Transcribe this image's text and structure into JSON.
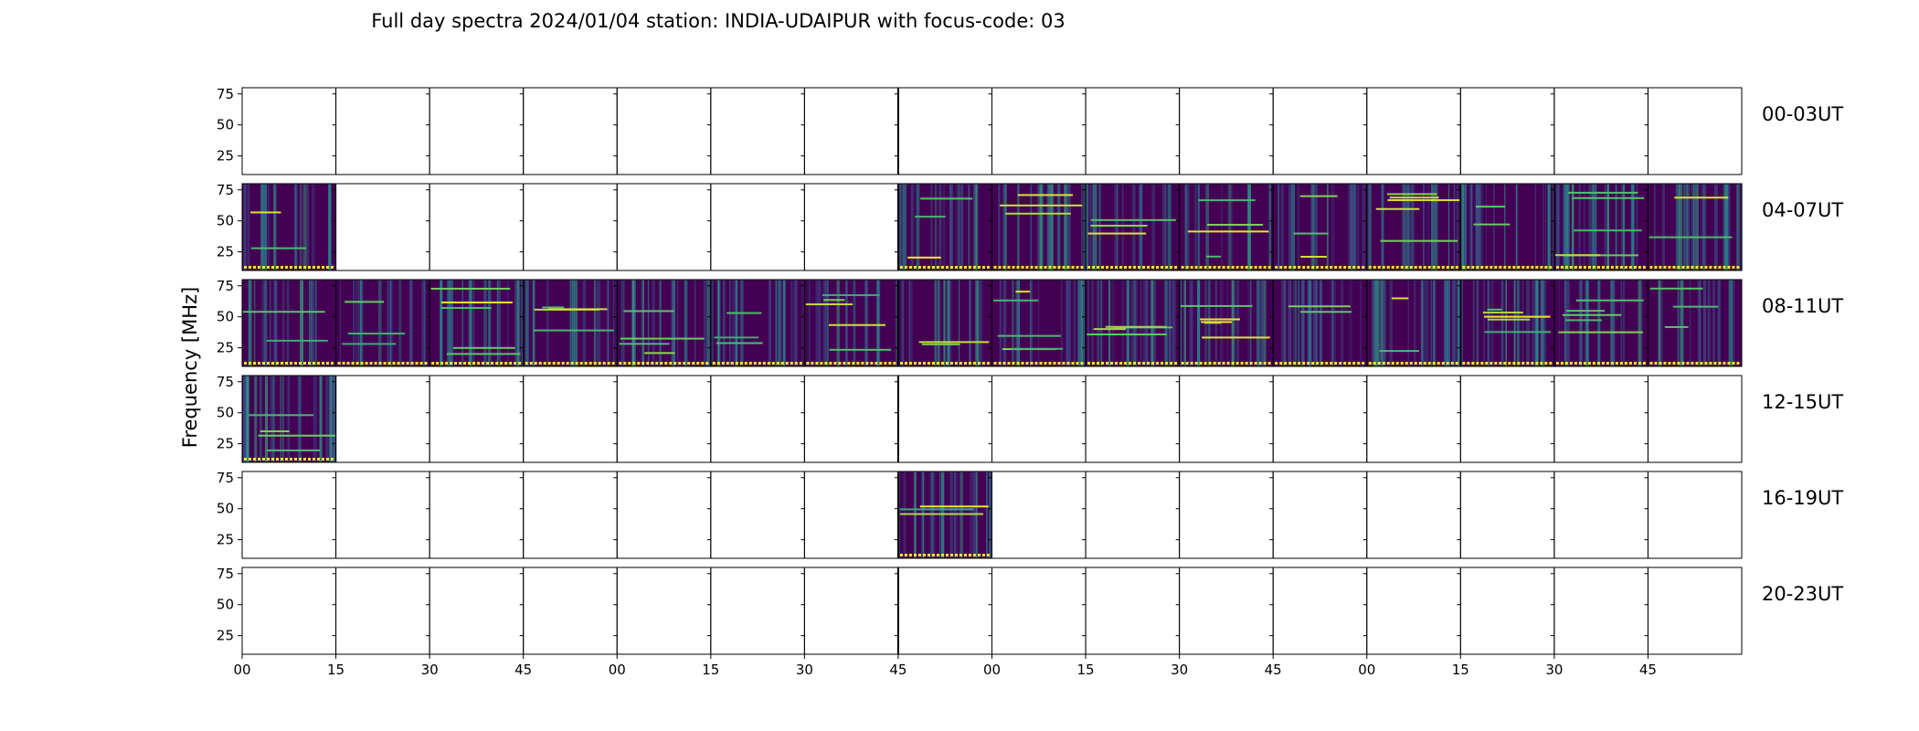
{
  "chart_data": {
    "type": "heatmap",
    "title": "Full day spectra 2024/01/04 station: INDIA-UDAIPUR with focus-code: 03",
    "ylabel": "Frequency [MHz]",
    "xlabel": "",
    "ylim": [
      10,
      80
    ],
    "y_ticks": [
      25,
      50,
      75
    ],
    "x_ticks": [
      "00",
      "15",
      "30",
      "45",
      "00",
      "15",
      "30",
      "45",
      "00",
      "15",
      "30",
      "45",
      "00",
      "15",
      "30",
      "45"
    ],
    "grid": false,
    "colormap": "viridis",
    "colors": {
      "low": "#440154",
      "mid": "#21918c",
      "high": "#fde725",
      "background": "#ffffff"
    },
    "rows": [
      {
        "label": "00-03UT",
        "filled_slots": []
      },
      {
        "label": "04-07UT",
        "filled_slots": [
          0,
          7,
          8,
          9,
          10,
          11,
          12,
          13,
          14,
          15
        ]
      },
      {
        "label": "08-11UT",
        "filled_slots": [
          0,
          1,
          2,
          3,
          4,
          5,
          6,
          7,
          8,
          9,
          10,
          11,
          12,
          13,
          14,
          15
        ]
      },
      {
        "label": "12-15UT",
        "filled_slots": [
          0
        ]
      },
      {
        "label": "16-19UT",
        "filled_slots": [
          7
        ]
      },
      {
        "label": "20-23UT",
        "filled_slots": []
      }
    ]
  }
}
